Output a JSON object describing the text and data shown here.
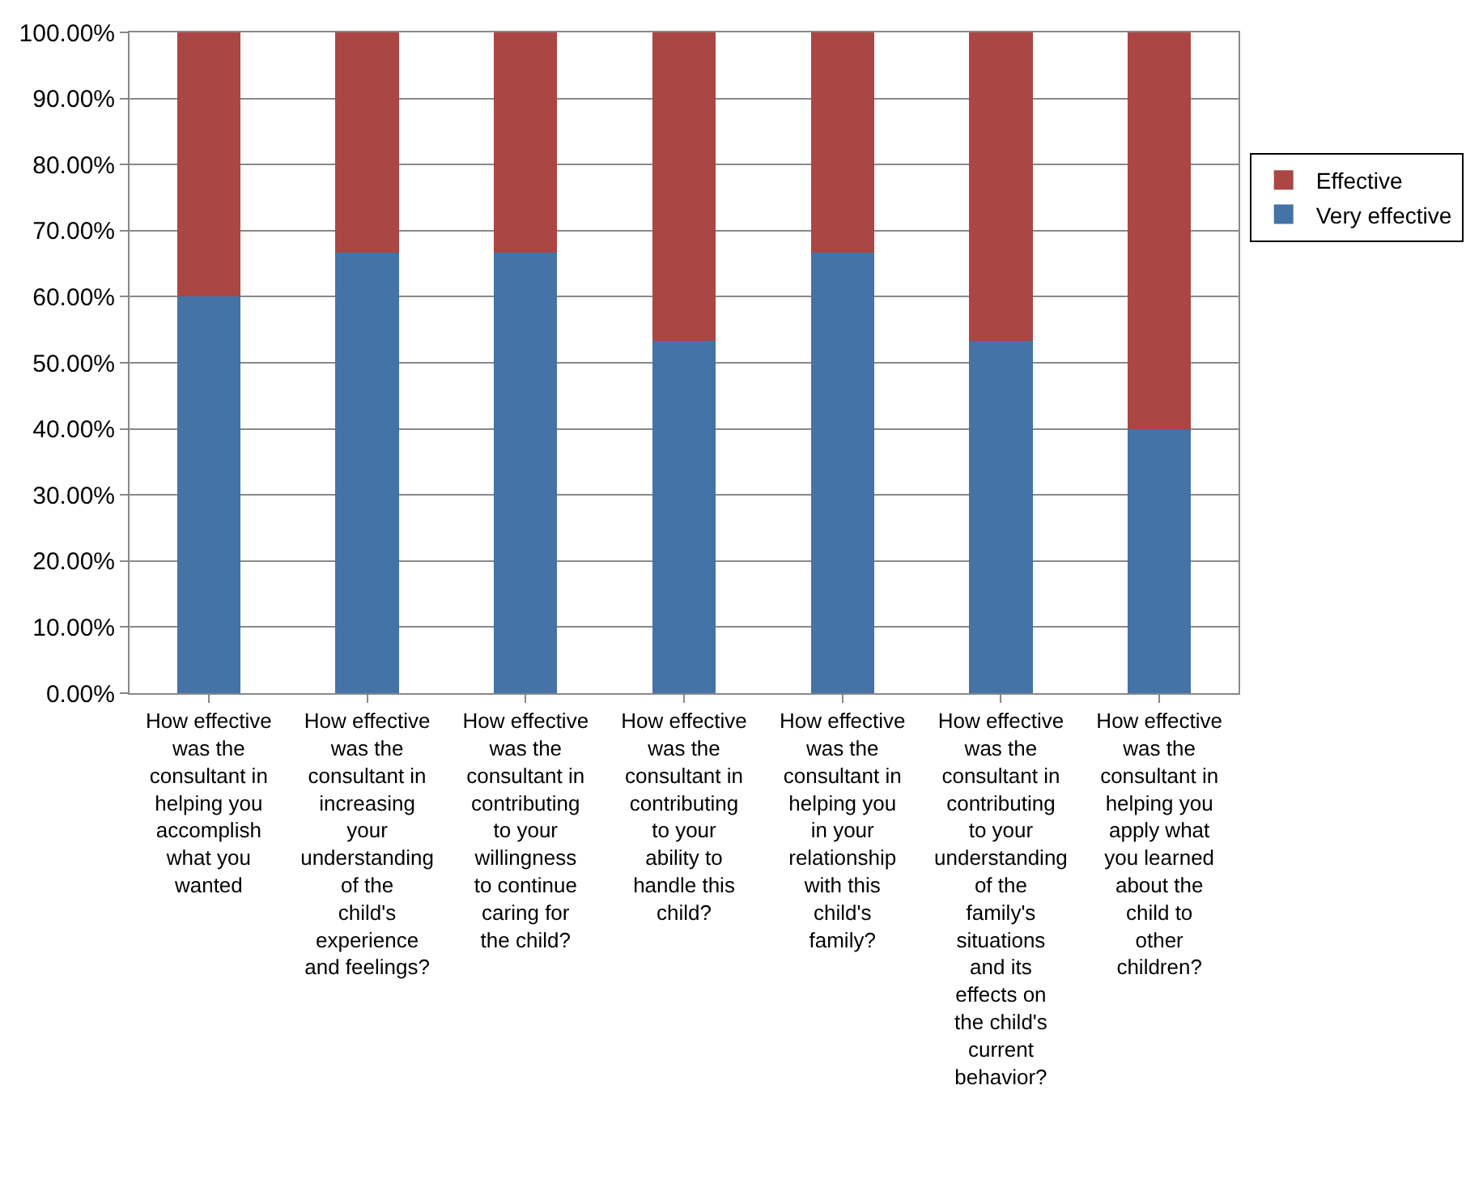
{
  "chart_data": {
    "type": "bar",
    "stacked": true,
    "categories": [
      "How effective was the consultant in helping you accomplish what you wanted",
      "How effective was the consultant in increasing your understanding of the child's experience and feelings?",
      "How effective was the consultant in contributing to your willingness to continue caring for the child?",
      "How effective was the consultant in contributing to your ability to handle this child?",
      "How effective was the consultant in helping you in your relationship with this child's family?",
      "How effective was the consultant in contributing to your understanding of the family's situations and its effects on the child's current behavior?",
      "How effective was the consultant in helping you apply what you learned about the child to other children?"
    ],
    "series": [
      {
        "name": "Very effective",
        "color": "#4572a7",
        "values": [
          60,
          66.7,
          66.7,
          53.3,
          66.7,
          53.3,
          40
        ]
      },
      {
        "name": "Effective",
        "color": "#aa4643",
        "values": [
          40,
          33.3,
          33.3,
          46.7,
          33.3,
          46.7,
          60
        ]
      }
    ],
    "ylim": [
      0,
      100
    ],
    "yticks": [
      {
        "value": 0,
        "label": "0.00%"
      },
      {
        "value": 10,
        "label": "10.00%"
      },
      {
        "value": 20,
        "label": "20.00%"
      },
      {
        "value": 30,
        "label": "30.00%"
      },
      {
        "value": 40,
        "label": "40.00%"
      },
      {
        "value": 50,
        "label": "50.00%"
      },
      {
        "value": 60,
        "label": "60.00%"
      },
      {
        "value": 70,
        "label": "70.00%"
      },
      {
        "value": 80,
        "label": "80.00%"
      },
      {
        "value": 90,
        "label": "90.00%"
      },
      {
        "value": 100,
        "label": "100.00%"
      }
    ],
    "grid": "y",
    "legend": "right"
  }
}
